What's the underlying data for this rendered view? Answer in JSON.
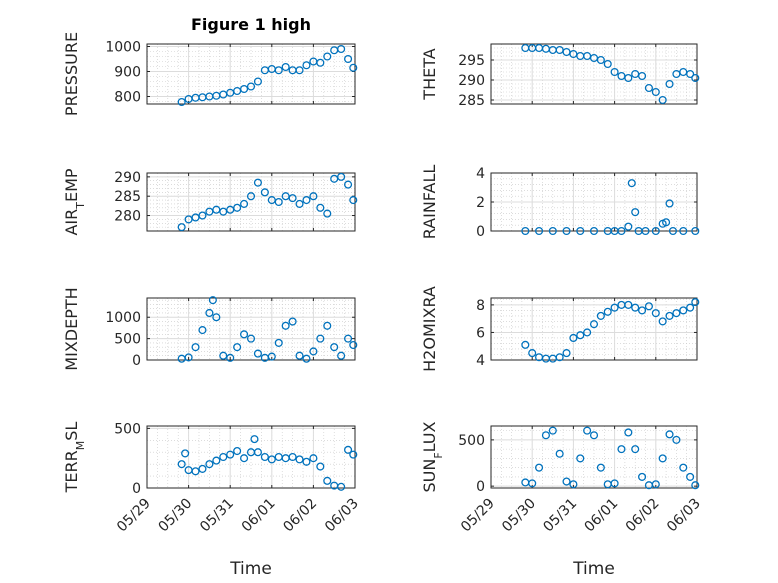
{
  "figure": {
    "title": "Figure 1 high",
    "xlabel": "Time",
    "x_ticks": [
      "05/29",
      "05/30",
      "05/31",
      "06/01",
      "06/02",
      "06/03"
    ],
    "marker_color": "#0072BD"
  },
  "chart_data": [
    {
      "type": "scatter",
      "ylabel": "PRESSURE",
      "ylim": [
        770,
        1010
      ],
      "yticks": [
        800,
        900,
        1000
      ],
      "ytick_labels": [
        "800",
        "900",
        "1000"
      ],
      "grid": true,
      "x": [
        "05/29 20:00",
        "05/30 00:00",
        "05/30 04:00",
        "05/30 08:00",
        "05/30 12:00",
        "05/30 16:00",
        "05/30 20:00",
        "05/31 00:00",
        "05/31 04:00",
        "05/31 08:00",
        "05/31 12:00",
        "05/31 16:00",
        "05/31 20:00",
        "06/01 00:00",
        "06/01 04:00",
        "06/01 08:00",
        "06/01 12:00",
        "06/01 16:00",
        "06/01 20:00",
        "06/02 00:00",
        "06/02 04:00",
        "06/02 08:00",
        "06/02 12:00",
        "06/02 16:00",
        "06/02 20:00",
        "06/02 23:00"
      ],
      "y": [
        778,
        790,
        795,
        797,
        800,
        803,
        808,
        815,
        822,
        830,
        840,
        860,
        905,
        910,
        905,
        918,
        905,
        905,
        925,
        940,
        935,
        960,
        985,
        990,
        950,
        915
      ]
    },
    {
      "type": "scatter",
      "ylabel": "THETA",
      "ylim": [
        284,
        299
      ],
      "yticks": [
        285,
        290,
        295
      ],
      "ytick_labels": [
        "285",
        "290",
        "295"
      ],
      "grid": true,
      "x": [
        "05/29 20:00",
        "05/30 00:00",
        "05/30 04:00",
        "05/30 08:00",
        "05/30 12:00",
        "05/30 16:00",
        "05/30 20:00",
        "05/31 00:00",
        "05/31 04:00",
        "05/31 08:00",
        "05/31 12:00",
        "05/31 16:00",
        "05/31 20:00",
        "06/01 00:00",
        "06/01 04:00",
        "06/01 08:00",
        "06/01 12:00",
        "06/01 16:00",
        "06/01 20:00",
        "06/02 00:00",
        "06/02 04:00",
        "06/02 08:00",
        "06/02 12:00",
        "06/02 16:00",
        "06/02 20:00",
        "06/02 23:00"
      ],
      "y": [
        298,
        298,
        298,
        297.8,
        297.5,
        297.5,
        297,
        296.5,
        296,
        296,
        295.5,
        295,
        294,
        292,
        291,
        290.5,
        291.5,
        291,
        288,
        287,
        285,
        289,
        291.5,
        292,
        291.5,
        290.5
      ]
    },
    {
      "type": "scatter",
      "ylabel": "AIR_TEMP",
      "ylim": [
        276,
        291
      ],
      "yticks": [
        280,
        285,
        290
      ],
      "ytick_labels": [
        "280",
        "285",
        "290"
      ],
      "grid": true,
      "x": [
        "05/29 20:00",
        "05/30 00:00",
        "05/30 04:00",
        "05/30 08:00",
        "05/30 12:00",
        "05/30 16:00",
        "05/30 20:00",
        "05/31 00:00",
        "05/31 04:00",
        "05/31 08:00",
        "05/31 12:00",
        "05/31 16:00",
        "05/31 20:00",
        "06/01 00:00",
        "06/01 04:00",
        "06/01 08:00",
        "06/01 12:00",
        "06/01 16:00",
        "06/01 20:00",
        "06/02 00:00",
        "06/02 04:00",
        "06/02 08:00",
        "06/02 12:00",
        "06/02 16:00",
        "06/02 20:00",
        "06/02 23:00"
      ],
      "y": [
        277,
        279,
        279.5,
        280,
        281,
        281.5,
        281,
        281.5,
        282,
        283,
        285,
        288.5,
        286,
        284,
        283.5,
        285,
        284.5,
        283,
        284,
        285,
        282,
        280.5,
        289.5,
        290,
        288,
        284
      ]
    },
    {
      "type": "scatter",
      "ylabel": "RAINFALL",
      "ylim": [
        0,
        4
      ],
      "yticks": [
        0,
        2,
        4
      ],
      "ytick_labels": [
        "0",
        "2",
        "4"
      ],
      "grid": true,
      "x": [
        "05/29 20:00",
        "05/30 04:00",
        "05/30 12:00",
        "05/30 20:00",
        "05/31 04:00",
        "05/31 12:00",
        "05/31 20:00",
        "06/01 00:00",
        "06/01 04:00",
        "06/01 08:00",
        "06/01 10:00",
        "06/01 12:00",
        "06/01 14:00",
        "06/01 18:00",
        "06/02 00:00",
        "06/02 04:00",
        "06/02 06:00",
        "06/02 08:00",
        "06/02 10:00",
        "06/02 16:00",
        "06/02 23:00"
      ],
      "y": [
        0,
        0,
        0,
        0,
        0,
        0,
        0,
        0,
        0,
        0.3,
        3.3,
        1.3,
        0,
        0,
        0,
        0.5,
        0.6,
        1.9,
        0,
        0,
        0
      ]
    },
    {
      "type": "scatter",
      "ylabel": "MIXDEPTH",
      "ylim": [
        0,
        1450
      ],
      "yticks": [
        0,
        500,
        1000
      ],
      "ytick_labels": [
        "0",
        "500",
        "1000"
      ],
      "grid": true,
      "x": [
        "05/29 20:00",
        "05/30 00:00",
        "05/30 04:00",
        "05/30 08:00",
        "05/30 12:00",
        "05/30 14:00",
        "05/30 16:00",
        "05/30 20:00",
        "05/31 00:00",
        "05/31 04:00",
        "05/31 08:00",
        "05/31 12:00",
        "05/31 16:00",
        "05/31 20:00",
        "06/01 00:00",
        "06/01 04:00",
        "06/01 08:00",
        "06/01 12:00",
        "06/01 16:00",
        "06/01 20:00",
        "06/02 00:00",
        "06/02 04:00",
        "06/02 08:00",
        "06/02 12:00",
        "06/02 16:00",
        "06/02 20:00",
        "06/02 23:00"
      ],
      "y": [
        30,
        60,
        300,
        700,
        1100,
        1400,
        1000,
        100,
        50,
        300,
        600,
        500,
        150,
        50,
        80,
        400,
        800,
        900,
        100,
        30,
        200,
        500,
        800,
        300,
        100,
        500,
        350
      ]
    },
    {
      "type": "scatter",
      "ylabel": "H2OMIXRA",
      "ylim": [
        4,
        8.5
      ],
      "yticks": [
        4,
        6,
        8
      ],
      "ytick_labels": [
        "4",
        "6",
        "8"
      ],
      "grid": true,
      "x": [
        "05/29 20:00",
        "05/30 00:00",
        "05/30 04:00",
        "05/30 08:00",
        "05/30 12:00",
        "05/30 16:00",
        "05/30 20:00",
        "05/31 00:00",
        "05/31 04:00",
        "05/31 08:00",
        "05/31 12:00",
        "05/31 16:00",
        "05/31 20:00",
        "06/01 00:00",
        "06/01 04:00",
        "06/01 08:00",
        "06/01 12:00",
        "06/01 16:00",
        "06/01 20:00",
        "06/02 00:00",
        "06/02 04:00",
        "06/02 08:00",
        "06/02 12:00",
        "06/02 16:00",
        "06/02 20:00",
        "06/02 23:00"
      ],
      "y": [
        5.1,
        4.5,
        4.2,
        4.1,
        4.1,
        4.2,
        4.5,
        5.6,
        5.8,
        6.0,
        6.6,
        7.2,
        7.5,
        7.8,
        8.0,
        8.0,
        7.8,
        7.6,
        7.9,
        7.4,
        6.8,
        7.2,
        7.4,
        7.6,
        7.8,
        8.2
      ]
    },
    {
      "type": "scatter",
      "ylabel": "TERR_MSL",
      "ylim": [
        0,
        520
      ],
      "yticks": [
        0,
        500
      ],
      "ytick_labels": [
        "0",
        "500"
      ],
      "grid": true,
      "x": [
        "05/29 20:00",
        "05/29 22:00",
        "05/30 00:00",
        "05/30 04:00",
        "05/30 08:00",
        "05/30 12:00",
        "05/30 16:00",
        "05/30 20:00",
        "05/31 00:00",
        "05/31 04:00",
        "05/31 08:00",
        "05/31 12:00",
        "05/31 14:00",
        "05/31 16:00",
        "05/31 20:00",
        "06/01 00:00",
        "06/01 04:00",
        "06/01 08:00",
        "06/01 12:00",
        "06/01 16:00",
        "06/01 20:00",
        "06/02 00:00",
        "06/02 04:00",
        "06/02 08:00",
        "06/02 12:00",
        "06/02 16:00",
        "06/02 20:00",
        "06/02 23:00"
      ],
      "y": [
        200,
        290,
        150,
        140,
        160,
        200,
        230,
        260,
        280,
        310,
        250,
        300,
        410,
        300,
        260,
        240,
        260,
        250,
        260,
        240,
        220,
        250,
        180,
        60,
        20,
        10,
        320,
        280
      ]
    },
    {
      "type": "scatter",
      "ylabel": "SUN_FLUX",
      "ylim": [
        -20,
        650
      ],
      "yticks": [
        0,
        500
      ],
      "ytick_labels": [
        "0",
        "500"
      ],
      "grid": true,
      "x": [
        "05/29 20:00",
        "05/30 00:00",
        "05/30 04:00",
        "05/30 08:00",
        "05/30 12:00",
        "05/30 16:00",
        "05/30 20:00",
        "05/31 00:00",
        "05/31 04:00",
        "05/31 08:00",
        "05/31 12:00",
        "05/31 16:00",
        "05/31 20:00",
        "06/01 00:00",
        "06/01 04:00",
        "06/01 08:00",
        "06/01 12:00",
        "06/01 16:00",
        "06/01 20:00",
        "06/02 00:00",
        "06/02 04:00",
        "06/02 08:00",
        "06/02 12:00",
        "06/02 16:00",
        "06/02 20:00",
        "06/02 23:00"
      ],
      "y": [
        40,
        30,
        200,
        550,
        600,
        350,
        50,
        20,
        300,
        600,
        550,
        200,
        20,
        30,
        400,
        580,
        400,
        100,
        10,
        20,
        300,
        560,
        500,
        200,
        100,
        10
      ]
    }
  ]
}
